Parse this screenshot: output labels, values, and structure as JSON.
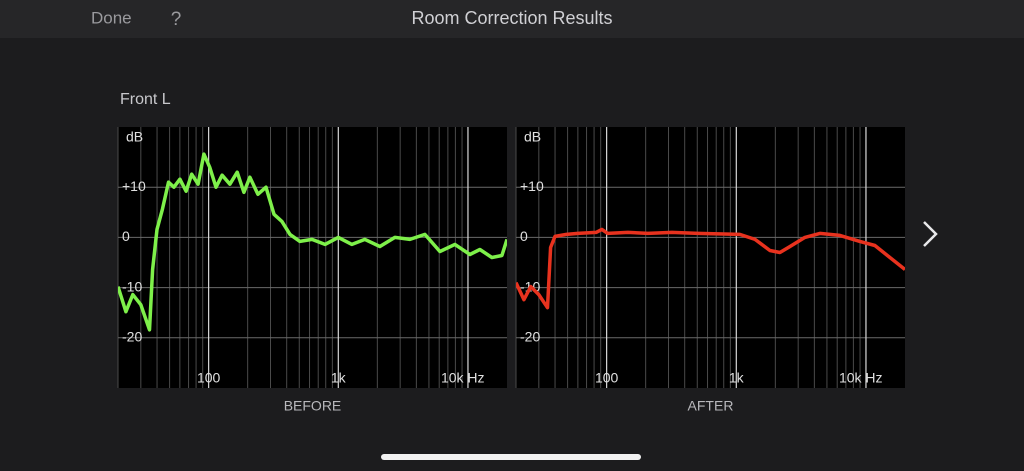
{
  "header": {
    "done": "Done",
    "help": "?",
    "title": "Room Correction Results"
  },
  "channel": "Front L",
  "chart_data": [
    {
      "type": "line",
      "title": "BEFORE",
      "y_label": "dB",
      "color": "#7ef04a",
      "log_x": true,
      "grid": true,
      "x": [
        20,
        23,
        26,
        30,
        35,
        37,
        40,
        44,
        49,
        54,
        60,
        67,
        74,
        83,
        92,
        102,
        114,
        127,
        146,
        166,
        187,
        208,
        240,
        277,
        319,
        367,
        424,
        506,
        627,
        789,
        1000,
        1274,
        1604,
        2094,
        2734,
        3565,
        4656,
        6080,
        7930,
        10350,
        12360,
        15300,
        18280,
        20000
      ],
      "values": [
        -9.8,
        -14.8,
        -11.4,
        -13.4,
        -18.4,
        -6.4,
        1.6,
        5.6,
        11,
        10,
        11.6,
        9.2,
        12.6,
        10.6,
        16.6,
        14,
        10,
        12.4,
        10.6,
        13,
        9,
        12,
        8.6,
        10,
        4.6,
        3.2,
        0.6,
        -0.8,
        -0.4,
        -1.4,
        0,
        -1.4,
        -0.4,
        -1.8,
        0,
        -0.4,
        0.6,
        -2.8,
        -1.4,
        -3.4,
        -2.4,
        -4,
        -3.6,
        -0.4
      ],
      "xlim": [
        20,
        20000
      ],
      "ylim": [
        -30,
        22
      ],
      "xticks": [
        100,
        {
          "value": 1000,
          "label": "1k"
        },
        {
          "value": 10000,
          "label": "10k Hz"
        }
      ],
      "x_minor_ticks": [
        20,
        30,
        40,
        50,
        60,
        70,
        80,
        90,
        200,
        300,
        400,
        500,
        600,
        700,
        800,
        900,
        2000,
        3000,
        4000,
        5000,
        6000,
        7000,
        8000,
        9000
      ],
      "yticks": [
        -20,
        -10,
        0,
        {
          "value": 10,
          "label": "+10"
        }
      ]
    },
    {
      "type": "line",
      "title": "AFTER",
      "y_label": "dB",
      "color": "#e8321e",
      "log_x": true,
      "grid": true,
      "x": [
        20,
        23,
        26,
        30,
        35,
        37,
        40,
        49,
        60,
        83,
        92,
        102,
        146,
        208,
        319,
        506,
        1065,
        1393,
        1817,
        2170,
        2593,
        3383,
        4415,
        6300,
        8980,
        11720,
        15300,
        20000
      ],
      "values": [
        -9,
        -12.4,
        -9.8,
        -11.4,
        -14,
        -2,
        0.2,
        0.6,
        0.8,
        1,
        1.6,
        0.8,
        1,
        0.8,
        1,
        0.8,
        0.6,
        -0.4,
        -2.6,
        -3,
        -1.8,
        0,
        0.8,
        0.4,
        -0.8,
        -1.6,
        -4,
        -6.4
      ],
      "xlim": [
        20,
        20000
      ],
      "ylim": [
        -30,
        22
      ],
      "xticks": [
        100,
        {
          "value": 1000,
          "label": "1k"
        },
        {
          "value": 10000,
          "label": "10k Hz"
        }
      ],
      "x_minor_ticks": [
        20,
        30,
        40,
        50,
        60,
        70,
        80,
        90,
        200,
        300,
        400,
        500,
        600,
        700,
        800,
        900,
        2000,
        3000,
        4000,
        5000,
        6000,
        7000,
        8000,
        9000
      ],
      "yticks": [
        -20,
        -10,
        0,
        {
          "value": 10,
          "label": "+10"
        }
      ]
    }
  ]
}
